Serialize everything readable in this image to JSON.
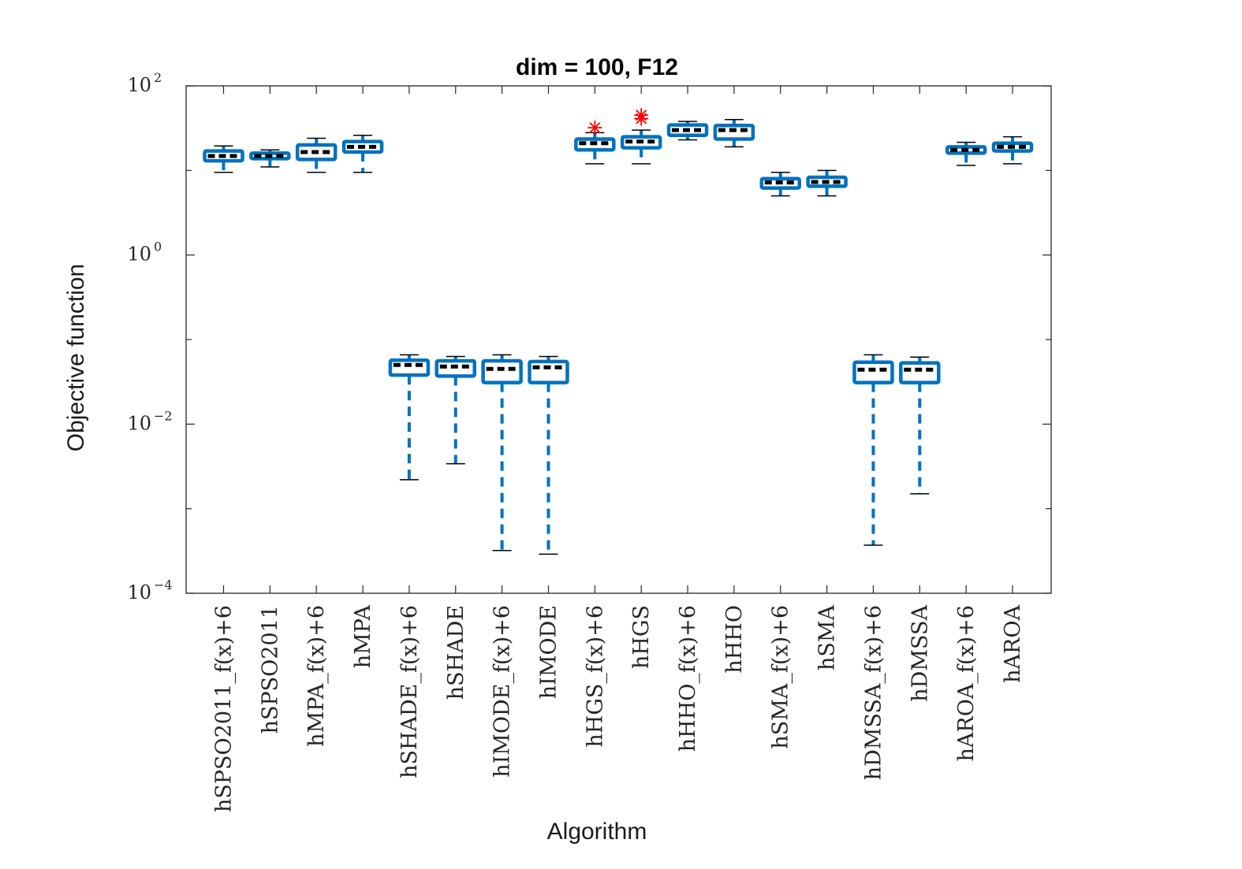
{
  "chart_data": {
    "type": "boxplot",
    "title": "dim = 100,  F12",
    "xlabel": "Algorithm",
    "ylabel": "Objective function",
    "yscale": "log",
    "ylim": [
      0.0001,
      100
    ],
    "yticks": [
      {
        "value": 100,
        "base": "10",
        "exp": "2"
      },
      {
        "value": 1,
        "base": "10",
        "exp": "0"
      },
      {
        "value": 0.01,
        "base": "10",
        "exp": "−2"
      },
      {
        "value": 0.0001,
        "base": "10",
        "exp": "−4"
      }
    ],
    "colors": {
      "box": "#0072BD",
      "median": "#000000",
      "outlier": "#FF0000",
      "axis": "#262626"
    },
    "series": [
      {
        "name": "hSPSO2011_f(x)+6",
        "whisker_low": 9.5,
        "q1": 13.0,
        "median": 14.8,
        "q3": 17.0,
        "whisker_high": 19.5,
        "outliers": []
      },
      {
        "name": "hSPSO2011",
        "whisker_low": 11.0,
        "q1": 13.8,
        "median": 14.8,
        "q3": 16.0,
        "whisker_high": 17.5,
        "outliers": []
      },
      {
        "name": "hMPA_f(x)+6",
        "whisker_low": 9.5,
        "q1": 13.5,
        "median": 16.5,
        "q3": 20.0,
        "whisker_high": 24.0,
        "outliers": []
      },
      {
        "name": "hMPA",
        "whisker_low": 9.5,
        "q1": 16.5,
        "median": 19.0,
        "q3": 22.0,
        "whisker_high": 26.0,
        "outliers": []
      },
      {
        "name": "hSHADE_f(x)+6",
        "whisker_low": 0.0022,
        "q1": 0.038,
        "median": 0.05,
        "q3": 0.057,
        "whisker_high": 0.066,
        "outliers": []
      },
      {
        "name": "hSHADE",
        "whisker_low": 0.0034,
        "q1": 0.037,
        "median": 0.048,
        "q3": 0.056,
        "whisker_high": 0.063,
        "outliers": []
      },
      {
        "name": "hIMODE_f(x)+6",
        "whisker_low": 0.00032,
        "q1": 0.031,
        "median": 0.045,
        "q3": 0.056,
        "whisker_high": 0.066,
        "outliers": []
      },
      {
        "name": "hIMODE",
        "whisker_low": 0.00029,
        "q1": 0.031,
        "median": 0.047,
        "q3": 0.055,
        "whisker_high": 0.063,
        "outliers": []
      },
      {
        "name": "hHGS_f(x)+6",
        "whisker_low": 12.0,
        "q1": 17.5,
        "median": 21.0,
        "q3": 23.5,
        "whisker_high": 28.0,
        "outliers": [
          32.0
        ]
      },
      {
        "name": "hHGS",
        "whisker_low": 12.0,
        "q1": 18.5,
        "median": 22.0,
        "q3": 25.0,
        "whisker_high": 30.0,
        "outliers": [
          41.0,
          45.0
        ]
      },
      {
        "name": "hHHO_f(x)+6",
        "whisker_low": 23.0,
        "q1": 26.0,
        "median": 30.0,
        "q3": 34.5,
        "whisker_high": 38.0,
        "outliers": []
      },
      {
        "name": "hHHO",
        "whisker_low": 19.0,
        "q1": 23.5,
        "median": 30.0,
        "q3": 34.0,
        "whisker_high": 40.0,
        "outliers": []
      },
      {
        "name": "hSMA_f(x)+6",
        "whisker_low": 5.0,
        "q1": 6.2,
        "median": 7.2,
        "q3": 8.0,
        "whisker_high": 9.5,
        "outliers": []
      },
      {
        "name": "hSMA",
        "whisker_low": 5.0,
        "q1": 6.5,
        "median": 7.3,
        "q3": 8.3,
        "whisker_high": 10.0,
        "outliers": []
      },
      {
        "name": "hDMSSA_f(x)+6",
        "whisker_low": 0.00037,
        "q1": 0.031,
        "median": 0.044,
        "q3": 0.054,
        "whisker_high": 0.066,
        "outliers": []
      },
      {
        "name": "hDMSSA",
        "whisker_low": 0.0015,
        "q1": 0.031,
        "median": 0.044,
        "q3": 0.053,
        "whisker_high": 0.062,
        "outliers": []
      },
      {
        "name": "hAROA_f(x)+6",
        "whisker_low": 11.5,
        "q1": 16.0,
        "median": 17.5,
        "q3": 19.0,
        "whisker_high": 21.5,
        "outliers": []
      },
      {
        "name": "hAROA",
        "whisker_low": 12.0,
        "q1": 17.0,
        "median": 19.0,
        "q3": 21.0,
        "whisker_high": 25.0,
        "outliers": []
      }
    ]
  }
}
